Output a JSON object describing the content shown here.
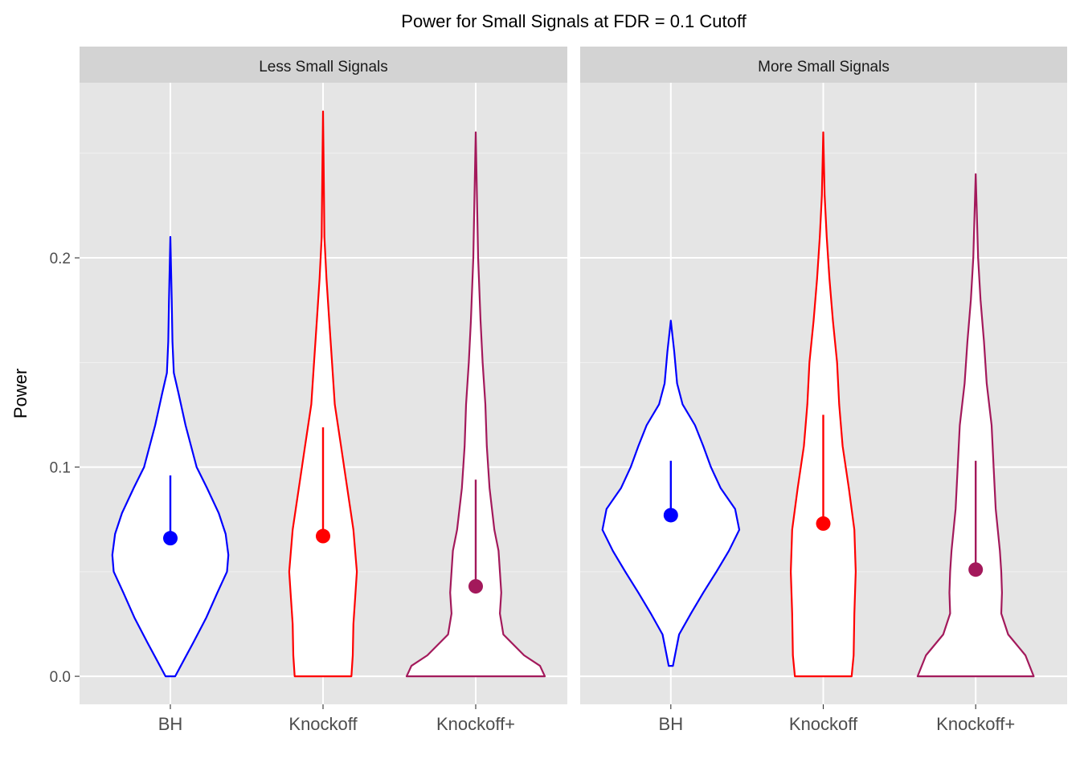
{
  "chart_data": {
    "type": "violin",
    "title": "Power for Small Signals at FDR = 0.1 Cutoff",
    "xlabel": "",
    "ylabel": "Power",
    "ylim": [
      -0.0134,
      0.2837
    ],
    "yticks": [
      0.0,
      0.1,
      0.2
    ],
    "ytick_labels": [
      "0.0",
      "0.1",
      "0.2"
    ],
    "grid": true,
    "categories": [
      "BH",
      "Knockoff",
      "Knockoff+"
    ],
    "colors": {
      "BH": "#0000FF",
      "Knockoff": "#FF0000",
      "Knockoff+": "#A3195B"
    },
    "panel_background": "#E5E5E5",
    "strip_background": "#D3D3D3",
    "panels": [
      {
        "label": "Less Small Signals",
        "violins": [
          {
            "category": "BH",
            "median": 0.066,
            "upper": 0.096,
            "profile": [
              [
                0,
                0.07
              ],
              [
                0.008,
                0.2
              ],
              [
                0.016,
                0.33
              ],
              [
                0.028,
                0.52
              ],
              [
                0.04,
                0.68
              ],
              [
                0.05,
                0.82
              ],
              [
                0.058,
                0.84
              ],
              [
                0.068,
                0.8
              ],
              [
                0.078,
                0.7
              ],
              [
                0.09,
                0.53
              ],
              [
                0.1,
                0.38
              ],
              [
                0.12,
                0.22
              ],
              [
                0.135,
                0.12
              ],
              [
                0.145,
                0.05
              ],
              [
                0.16,
                0.03
              ],
              [
                0.18,
                0.02
              ],
              [
                0.21,
                0.0
              ]
            ]
          },
          {
            "category": "Knockoff",
            "median": 0.067,
            "upper": 0.119,
            "profile": [
              [
                0,
                0.41
              ],
              [
                0.01,
                0.43
              ],
              [
                0.025,
                0.44
              ],
              [
                0.04,
                0.47
              ],
              [
                0.05,
                0.49
              ],
              [
                0.07,
                0.44
              ],
              [
                0.09,
                0.35
              ],
              [
                0.11,
                0.26
              ],
              [
                0.13,
                0.17
              ],
              [
                0.15,
                0.13
              ],
              [
                0.17,
                0.09
              ],
              [
                0.19,
                0.05
              ],
              [
                0.21,
                0.02
              ],
              [
                0.24,
                0.01
              ],
              [
                0.27,
                0.0
              ]
            ]
          },
          {
            "category": "Knockoff+",
            "median": 0.043,
            "upper": 0.094,
            "profile": [
              [
                0,
                1.0
              ],
              [
                0.005,
                0.93
              ],
              [
                0.01,
                0.7
              ],
              [
                0.02,
                0.4
              ],
              [
                0.03,
                0.35
              ],
              [
                0.04,
                0.37
              ],
              [
                0.05,
                0.35
              ],
              [
                0.06,
                0.33
              ],
              [
                0.07,
                0.27
              ],
              [
                0.09,
                0.2
              ],
              [
                0.11,
                0.16
              ],
              [
                0.13,
                0.14
              ],
              [
                0.15,
                0.1
              ],
              [
                0.17,
                0.07
              ],
              [
                0.2,
                0.035
              ],
              [
                0.23,
                0.017
              ],
              [
                0.26,
                0.0
              ]
            ]
          }
        ]
      },
      {
        "label": "More Small Signals",
        "violins": [
          {
            "category": "BH",
            "median": 0.077,
            "upper": 0.103,
            "profile": [
              [
                0.005,
                0.03
              ],
              [
                0.02,
                0.12
              ],
              [
                0.03,
                0.29
              ],
              [
                0.04,
                0.47
              ],
              [
                0.05,
                0.66
              ],
              [
                0.06,
                0.84
              ],
              [
                0.07,
                0.99
              ],
              [
                0.08,
                0.93
              ],
              [
                0.09,
                0.72
              ],
              [
                0.1,
                0.58
              ],
              [
                0.11,
                0.47
              ],
              [
                0.12,
                0.35
              ],
              [
                0.13,
                0.17
              ],
              [
                0.14,
                0.09
              ],
              [
                0.155,
                0.05
              ],
              [
                0.17,
                0.0
              ]
            ]
          },
          {
            "category": "Knockoff",
            "median": 0.073,
            "upper": 0.125,
            "profile": [
              [
                0,
                0.41
              ],
              [
                0.01,
                0.44
              ],
              [
                0.03,
                0.45
              ],
              [
                0.05,
                0.47
              ],
              [
                0.07,
                0.45
              ],
              [
                0.09,
                0.37
              ],
              [
                0.11,
                0.28
              ],
              [
                0.13,
                0.23
              ],
              [
                0.15,
                0.2
              ],
              [
                0.17,
                0.14
              ],
              [
                0.19,
                0.09
              ],
              [
                0.21,
                0.05
              ],
              [
                0.23,
                0.02
              ],
              [
                0.26,
                0.0
              ]
            ]
          },
          {
            "category": "Knockoff+",
            "median": 0.051,
            "upper": 0.103,
            "profile": [
              [
                0,
                0.84
              ],
              [
                0.01,
                0.72
              ],
              [
                0.02,
                0.47
              ],
              [
                0.03,
                0.37
              ],
              [
                0.04,
                0.38
              ],
              [
                0.05,
                0.37
              ],
              [
                0.06,
                0.35
              ],
              [
                0.08,
                0.29
              ],
              [
                0.1,
                0.26
              ],
              [
                0.12,
                0.23
              ],
              [
                0.14,
                0.16
              ],
              [
                0.16,
                0.12
              ],
              [
                0.18,
                0.07
              ],
              [
                0.2,
                0.035
              ],
              [
                0.24,
                0.0
              ]
            ]
          }
        ]
      }
    ]
  }
}
